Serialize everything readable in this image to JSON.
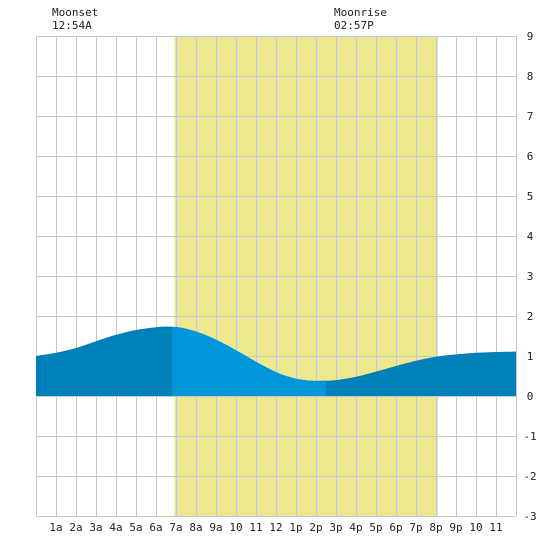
{
  "chart_data": {
    "type": "area",
    "title": "",
    "xlabel": "",
    "ylabel": "",
    "x_tick_labels": [
      "1a",
      "2a",
      "3a",
      "4a",
      "5a",
      "6a",
      "7a",
      "8a",
      "9a",
      "10",
      "11",
      "12",
      "1p",
      "2p",
      "3p",
      "4p",
      "5p",
      "6p",
      "7p",
      "8p",
      "9p",
      "10",
      "11"
    ],
    "xlim": [
      0,
      24
    ],
    "ylim": [
      -3,
      9
    ],
    "y_ticks": [
      -3,
      -2,
      -1,
      0,
      1,
      2,
      3,
      4,
      5,
      6,
      7,
      8,
      9
    ],
    "grid": true,
    "daylight": {
      "start_hour": 6.92,
      "end_hour": 20.1,
      "color": "#eee88c"
    },
    "moon_events": [
      {
        "label": "Moonset",
        "time": "12:54A",
        "hour": 0.9
      },
      {
        "label": "Moonrise",
        "time": "02:57P",
        "hour": 14.95
      }
    ],
    "series": [
      {
        "x": [
          0,
          1,
          2,
          3,
          4,
          5,
          6,
          6.8,
          7.5,
          8.5,
          9.5,
          10.5,
          11.5,
          12.5,
          13.5,
          14.5,
          15.2,
          16,
          17,
          18,
          19,
          20,
          21,
          22,
          23,
          24
        ],
        "values": [
          1.0,
          1.08,
          1.2,
          1.37,
          1.53,
          1.65,
          1.72,
          1.73,
          1.68,
          1.52,
          1.28,
          1.0,
          0.72,
          0.5,
          0.39,
          0.38,
          0.41,
          0.48,
          0.61,
          0.75,
          0.88,
          0.98,
          1.04,
          1.08,
          1.1,
          1.11
        ]
      }
    ],
    "highlight_segments": [
      {
        "start_hour": 6.8,
        "end_hour": 14.6
      }
    ],
    "colors": {
      "tide_dark": "#0080b8",
      "tide_light": "#0096d8",
      "grid": "#c8c8c8"
    }
  }
}
